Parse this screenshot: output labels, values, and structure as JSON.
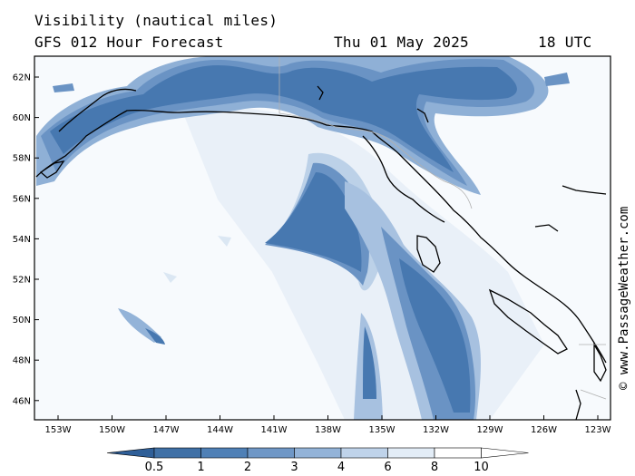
{
  "header": {
    "title": "Visibility (nautical miles)",
    "subtitle": "GFS 012 Hour Forecast",
    "date": "Thu 01 May 2025",
    "time": "18 UTC"
  },
  "map": {
    "lat_labels": [
      "62N",
      "60N",
      "58N",
      "56N",
      "54N",
      "52N",
      "50N",
      "48N",
      "46N"
    ],
    "lon_labels": [
      "153W",
      "150W",
      "147W",
      "144W",
      "141W",
      "138W",
      "135W",
      "132W",
      "129W",
      "126W",
      "123W"
    ],
    "shading_colors": [
      "#3f70a6",
      "#4f80b6",
      "#6f97c6",
      "#93b3d8",
      "#bfd3ea",
      "#e3edf7",
      "#ffffff"
    ]
  },
  "colorbar": {
    "labels": [
      "0.5",
      "1",
      "2",
      "3",
      "4",
      "6",
      "8",
      "10"
    ]
  },
  "copyright": "© www.PassageWeather.com"
}
